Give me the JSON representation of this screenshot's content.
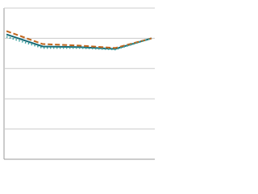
{
  "chart_data": {
    "type": "line",
    "categories": [
      null,
      null,
      null,
      null,
      null
    ],
    "series": [
      {
        "color": "#1a6b78",
        "style": "solid",
        "values": [
          4.13,
          3.73,
          3.71,
          3.65,
          4.0
        ]
      },
      {
        "color": "#c0661e",
        "style": "dashed",
        "values": [
          4.24,
          3.81,
          3.76,
          3.68,
          4.0
        ]
      },
      {
        "color": "#3aa3a0",
        "style": "dotted",
        "values": [
          4.05,
          3.68,
          3.68,
          3.63,
          4.0
        ]
      }
    ],
    "ylim": [
      0,
      5
    ],
    "yticks": [
      0,
      1,
      2,
      3,
      4,
      5
    ],
    "grid": true
  }
}
